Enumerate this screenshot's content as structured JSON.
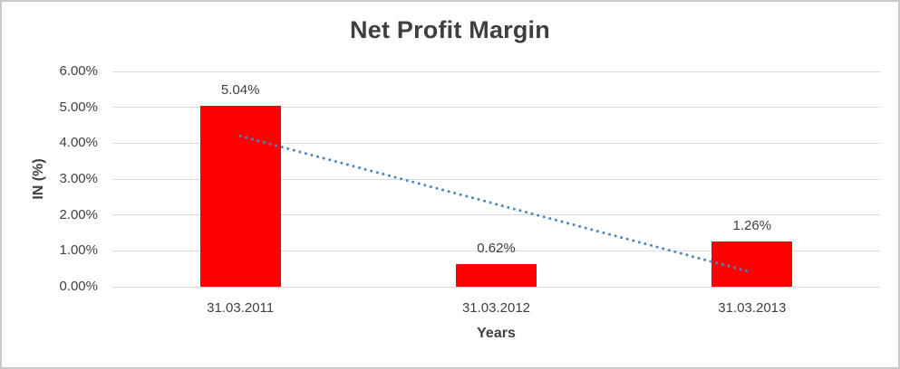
{
  "chart_data": {
    "type": "bar",
    "title": "Net Profit Margin",
    "categories": [
      "31.03.2011",
      "31.03.2012",
      "31.03.2013"
    ],
    "values": [
      5.04,
      0.62,
      1.26
    ],
    "data_labels": [
      "5.04%",
      "0.62%",
      "1.26%"
    ],
    "xlabel": "Years",
    "ylabel": "IN (%)",
    "ylim": [
      0,
      6
    ],
    "y_tick_step": 1,
    "y_tick_labels": [
      "0.00%",
      "1.00%",
      "2.00%",
      "3.00%",
      "4.00%",
      "5.00%",
      "6.00%"
    ],
    "grid": true,
    "legend": false,
    "trendline": {
      "type": "linear",
      "style": "dotted",
      "start_value": 4.2,
      "end_value": 0.4
    },
    "colors": {
      "bar": "#FF0000",
      "trendline": "#4A86C3",
      "gridline": "#D9D9D9",
      "text": "#404040",
      "frame_border": "#C9C9C9"
    }
  }
}
